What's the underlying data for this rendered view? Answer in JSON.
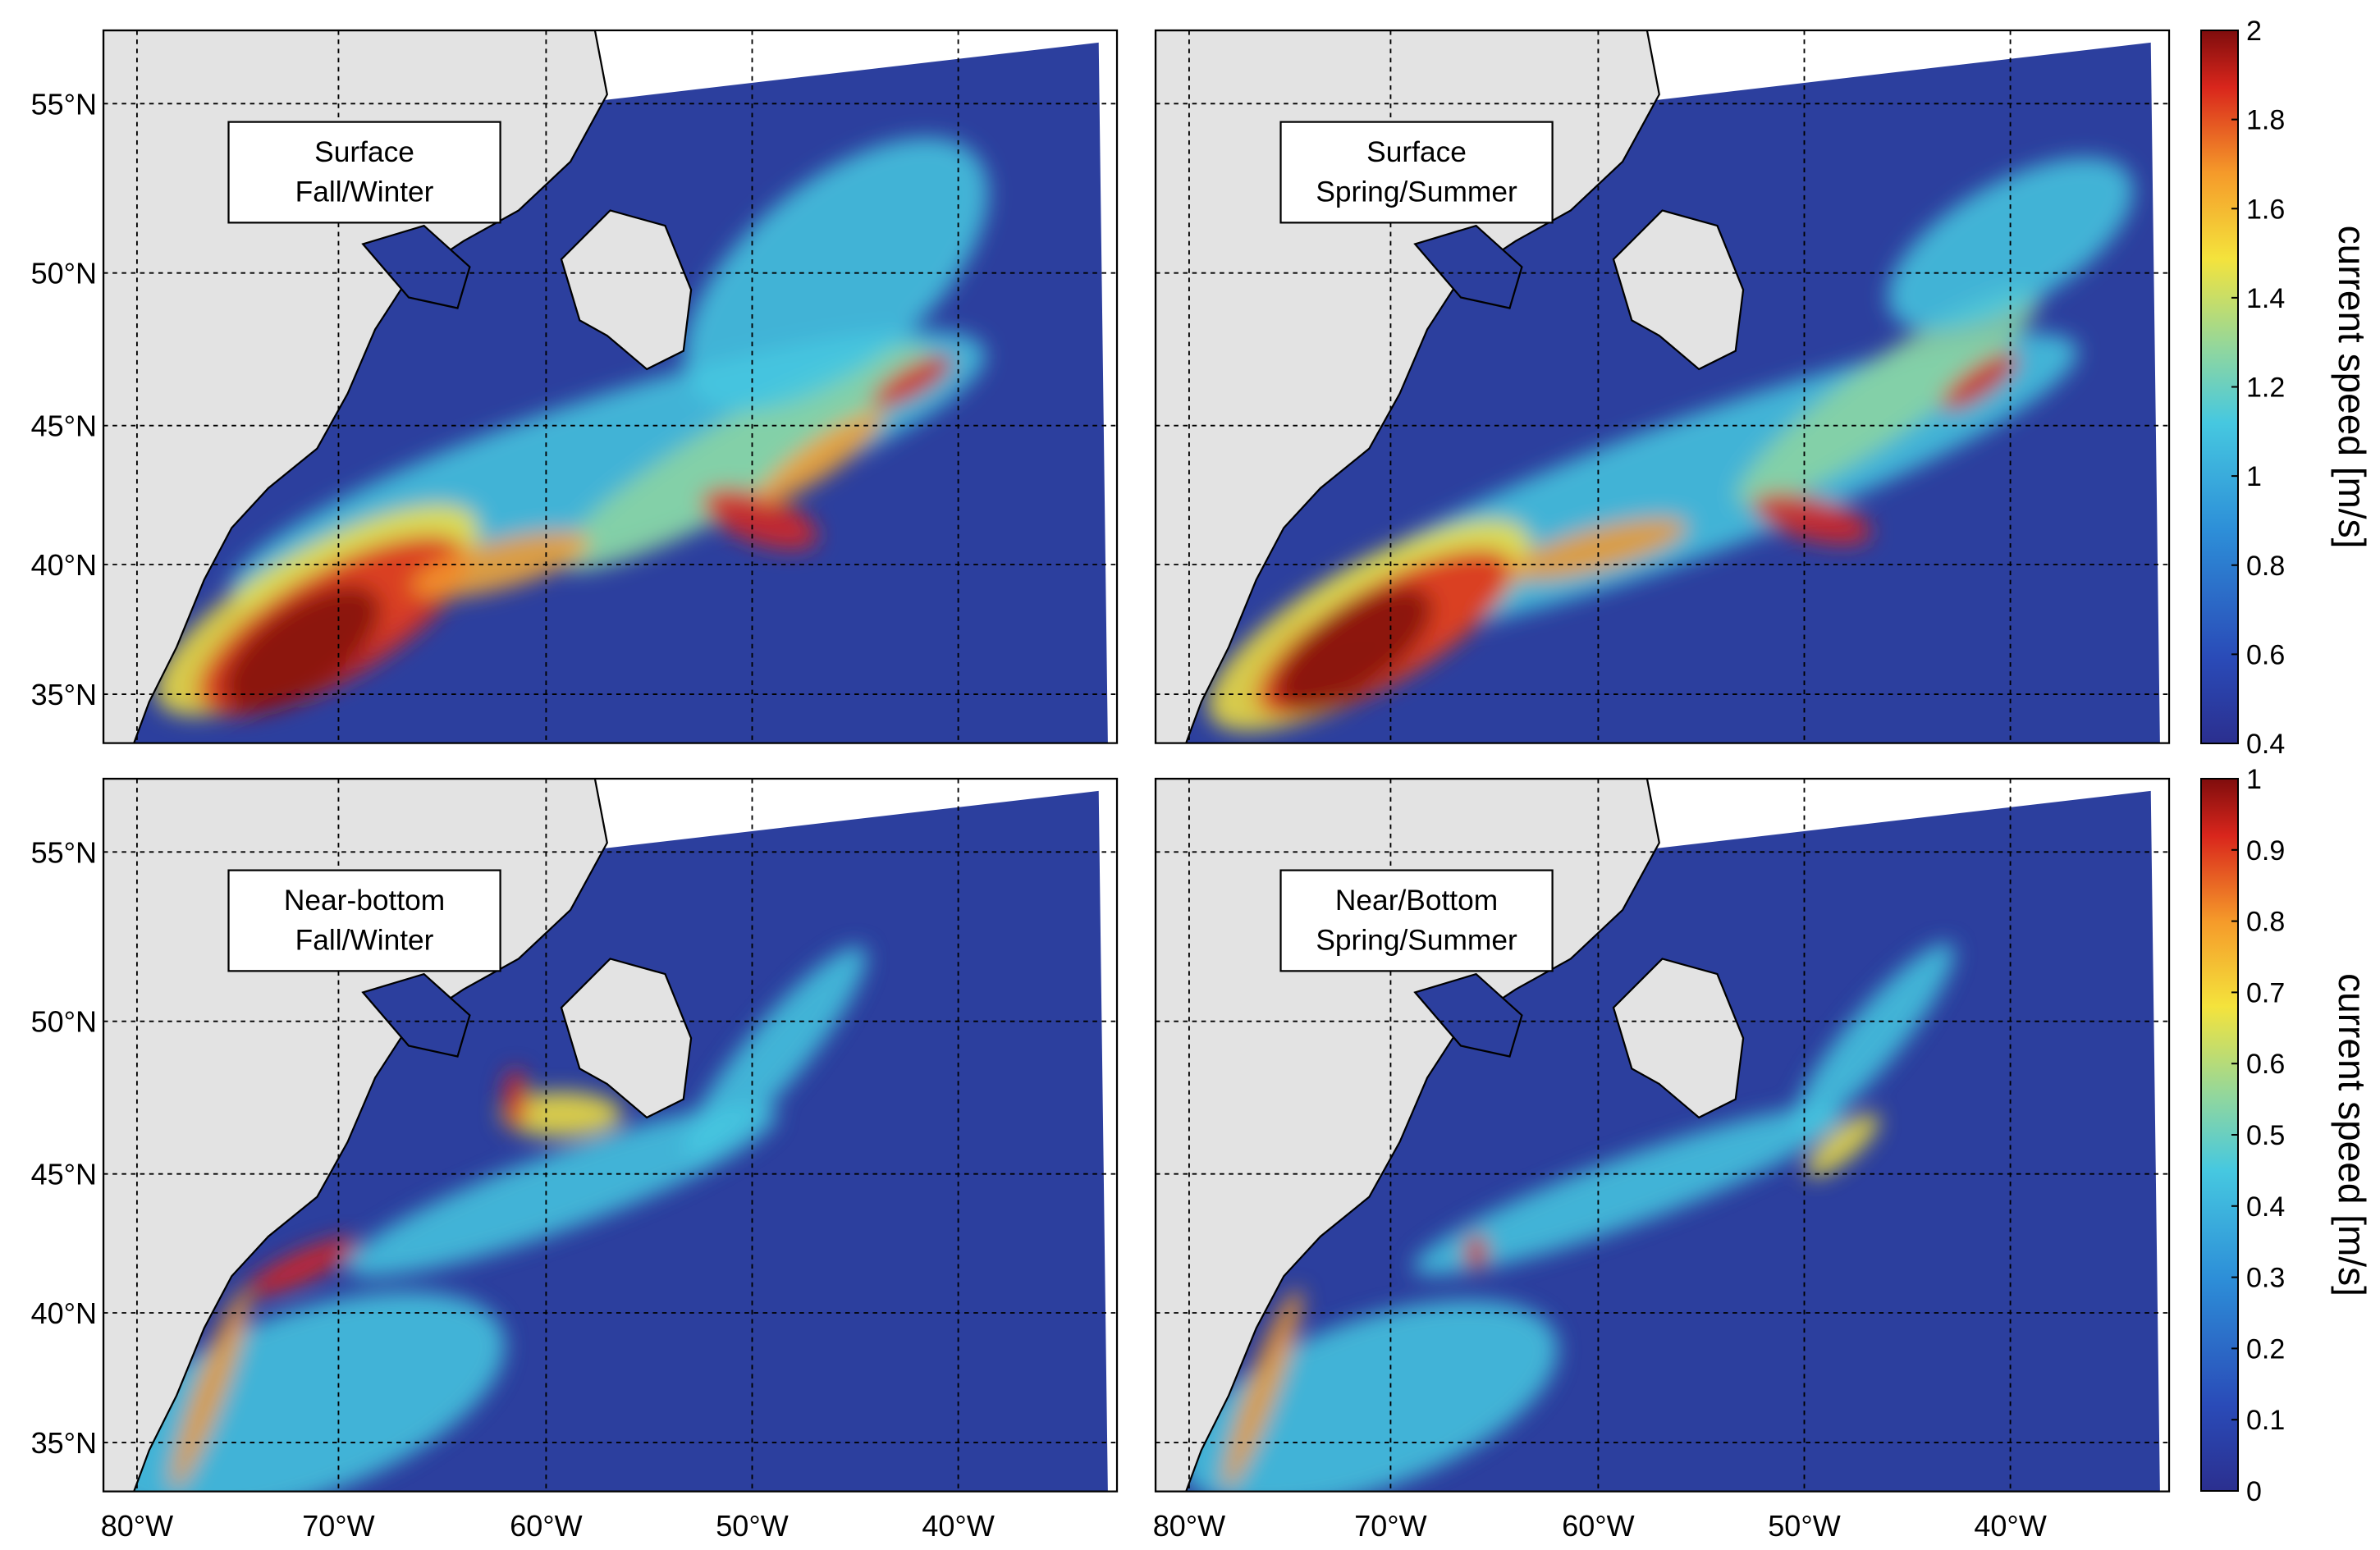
{
  "panels": [
    {
      "label": [
        "Surface",
        "Fall/Winter"
      ]
    },
    {
      "label": [
        "Surface",
        "Spring/Summer"
      ]
    },
    {
      "label": [
        "Near-bottom",
        "Fall/Winter"
      ]
    },
    {
      "label": [
        "Near/Bottom",
        "Spring/Summer"
      ]
    }
  ],
  "lat_ticks": [
    "55°N",
    "50°N",
    "45°N",
    "40°N",
    "35°N"
  ],
  "lon_ticks": [
    "80°W",
    "70°W",
    "60°W",
    "50°W",
    "40°W"
  ],
  "colorbars": [
    {
      "label": "current speed [m/s]",
      "range": [
        0.4,
        2
      ],
      "ticks": [
        0.4,
        0.6,
        0.8,
        1,
        1.2,
        1.4,
        1.6,
        1.8,
        2
      ]
    },
    {
      "label": "current speed [m/s]",
      "range": [
        0,
        1
      ],
      "ticks": [
        0,
        0.1,
        0.2,
        0.3,
        0.4,
        0.5,
        0.6,
        0.7,
        0.8,
        0.9,
        1
      ]
    }
  ]
}
